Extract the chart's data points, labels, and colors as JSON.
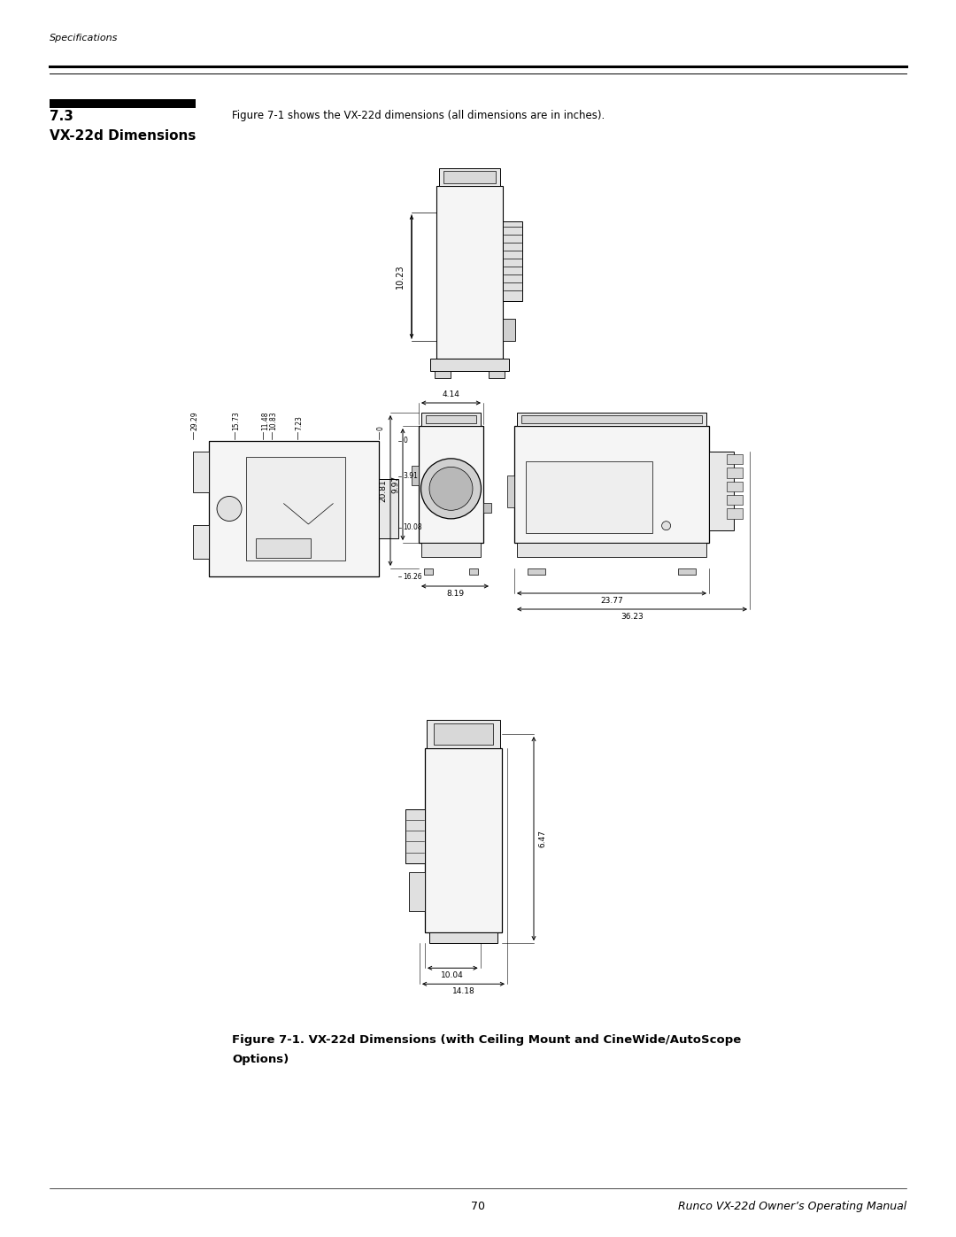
{
  "page_width": 10.8,
  "page_height": 13.97,
  "dpi": 100,
  "bg_color": "#ffffff",
  "header_italic": "Specifications",
  "section_num": "7.3",
  "section_title": "VX-22d Dimensions",
  "intro_text": "Figure 7-1 shows the VX-22d dimensions (all dimensions are in inches).",
  "figure_caption_line1": "Figure 7-1. VX-22d Dimensions (with Ceiling Mount and CineWide/AutoScope",
  "figure_caption_line2": "Options)",
  "footer_page": "70",
  "footer_right": "Runco VX-22d Owner’s Operating Manual",
  "top_view_dim": "10.23",
  "plan_x_labels": [
    "0",
    "7.23",
    "10.83",
    "11.48",
    "15.73",
    "29.29"
  ],
  "plan_y_labels": [
    "0",
    "3.91",
    "10.08",
    "16.26"
  ],
  "front_width_dim": "4.14",
  "front_height_dims": [
    "9.97",
    "20.81"
  ],
  "side_dims": [
    "23.77",
    "36.23"
  ],
  "bottom_dims": [
    "6.47",
    "10.04",
    "14.18"
  ],
  "middle_front_width_dim": "8.19"
}
